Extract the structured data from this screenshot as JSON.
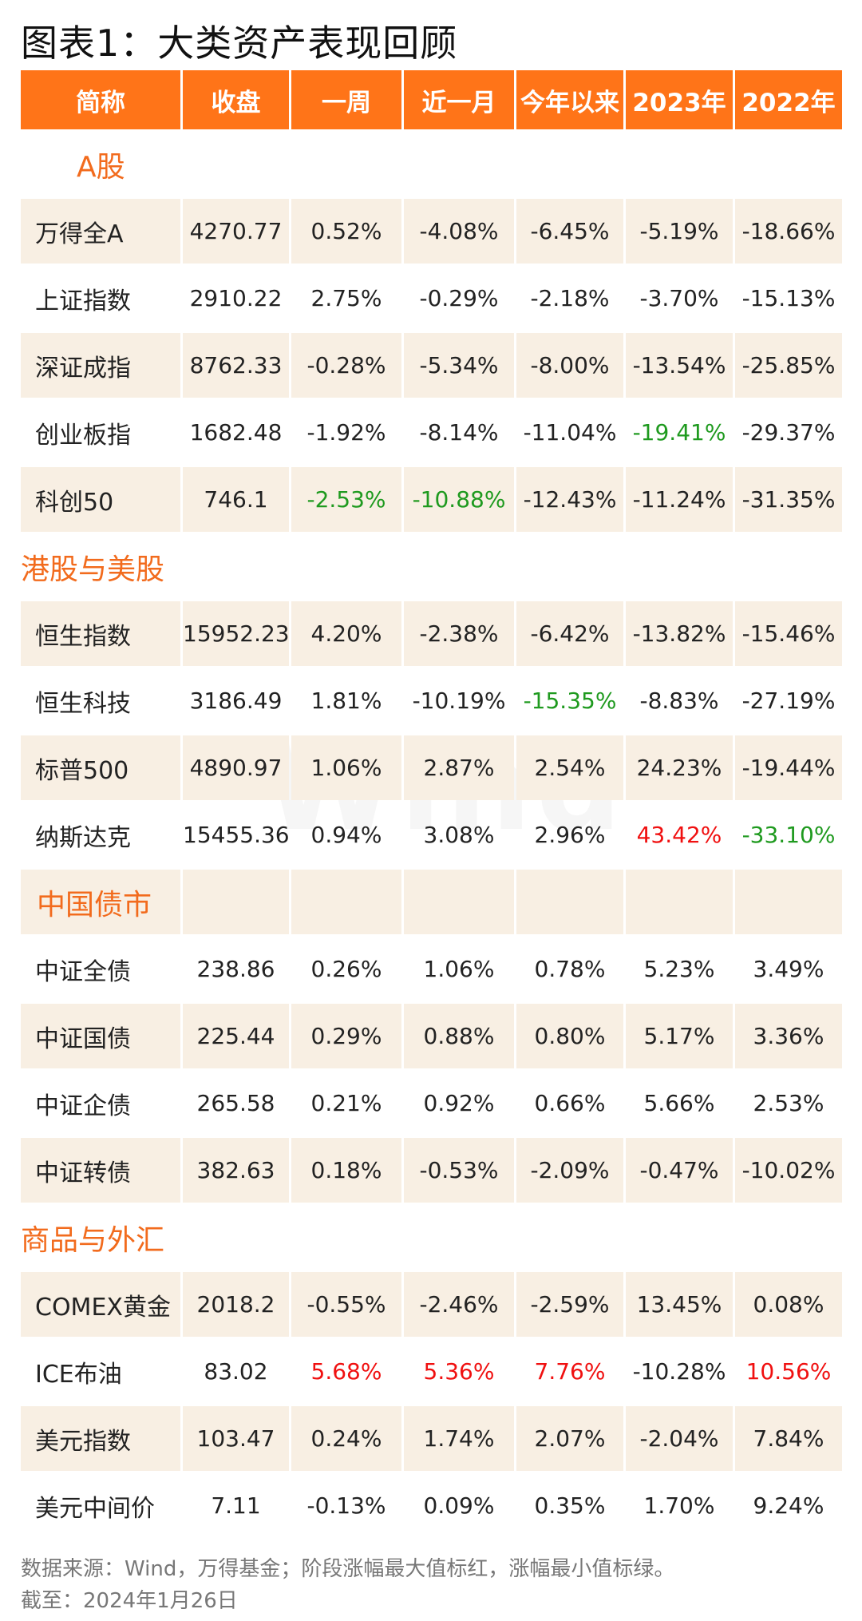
{
  "header": {
    "title": "图表1：大类资产表现回顾"
  },
  "table": {
    "columns": [
      "简称",
      "收盘",
      "一周",
      "近一月",
      "今年以来",
      "2023年",
      "2022年"
    ],
    "sections": [
      {
        "title": "A股",
        "rows": [
          {
            "name": "万得全A",
            "values": [
              "4270.77",
              "0.52%",
              "-4.08%",
              "-6.45%",
              "-5.19%",
              "-18.66%"
            ]
          },
          {
            "name": "上证指数",
            "values": [
              "2910.22",
              "2.75%",
              "-0.29%",
              "-2.18%",
              "-3.70%",
              "-15.13%"
            ]
          },
          {
            "name": "深证成指",
            "values": [
              "8762.33",
              "-0.28%",
              "-5.34%",
              "-8.00%",
              "-13.54%",
              "-25.85%"
            ]
          },
          {
            "name": "创业板指",
            "values": [
              "1682.48",
              "-1.92%",
              "-8.14%",
              "-11.04%",
              "-19.41%",
              "-29.37%"
            ],
            "highlights": [
              {
                "col": 4,
                "color": "#1f9a1f"
              }
            ]
          },
          {
            "name": "科创50",
            "values": [
              "746.1",
              "-2.53%",
              "-10.88%",
              "-12.43%",
              "-11.24%",
              "-31.35%"
            ],
            "highlights": [
              {
                "col": 1,
                "color": "#1f9a1f"
              },
              {
                "col": 2,
                "color": "#1f9a1f"
              }
            ]
          }
        ]
      },
      {
        "title": "港股与美股",
        "rows": [
          {
            "name": "恒生指数",
            "values": [
              "15952.23",
              "4.20%",
              "-2.38%",
              "-6.42%",
              "-13.82%",
              "-15.46%"
            ]
          },
          {
            "name": "恒生科技",
            "values": [
              "3186.49",
              "1.81%",
              "-10.19%",
              "-15.35%",
              "-8.83%",
              "-27.19%"
            ],
            "highlights": [
              {
                "col": 3,
                "color": "#1f9a1f"
              }
            ]
          },
          {
            "name": "标普500",
            "values": [
              "4890.97",
              "1.06%",
              "2.87%",
              "2.54%",
              "24.23%",
              "-19.44%"
            ]
          },
          {
            "name": "纳斯达克",
            "values": [
              "15455.36",
              "0.94%",
              "3.08%",
              "2.96%",
              "43.42%",
              "-33.10%"
            ],
            "highlights": [
              {
                "col": 4,
                "color": "#f01010"
              },
              {
                "col": 5,
                "color": "#1f9a1f"
              }
            ]
          }
        ]
      },
      {
        "title": "中国债市",
        "rows": [
          {
            "name": "中证全债",
            "values": [
              "238.86",
              "0.26%",
              "1.06%",
              "0.78%",
              "5.23%",
              "3.49%"
            ]
          },
          {
            "name": "中证国债",
            "values": [
              "225.44",
              "0.29%",
              "0.88%",
              "0.80%",
              "5.17%",
              "3.36%"
            ]
          },
          {
            "name": "中证企债",
            "values": [
              "265.58",
              "0.21%",
              "0.92%",
              "0.66%",
              "5.66%",
              "2.53%"
            ]
          },
          {
            "name": "中证转债",
            "values": [
              "382.63",
              "0.18%",
              "-0.53%",
              "-2.09%",
              "-0.47%",
              "-10.02%"
            ]
          }
        ]
      },
      {
        "title": "商品与外汇",
        "rows": [
          {
            "name": "COMEX黄金",
            "values": [
              "2018.2",
              "-0.55%",
              "-2.46%",
              "-2.59%",
              "13.45%",
              "0.08%"
            ]
          },
          {
            "name": "ICE布油",
            "values": [
              "83.02",
              "5.68%",
              "5.36%",
              "7.76%",
              "-10.28%",
              "10.56%"
            ],
            "highlights": [
              {
                "col": 1,
                "color": "#f01010"
              },
              {
                "col": 2,
                "color": "#f01010"
              },
              {
                "col": 3,
                "color": "#f01010"
              },
              {
                "col": 5,
                "color": "#f01010"
              }
            ]
          },
          {
            "name": "美元指数",
            "values": [
              "103.47",
              "0.24%",
              "1.74%",
              "2.07%",
              "-2.04%",
              "7.84%"
            ]
          },
          {
            "name": "美元中间价",
            "values": [
              "7.11",
              "-0.13%",
              "0.09%",
              "0.35%",
              "1.70%",
              "9.24%"
            ]
          }
        ]
      }
    ]
  },
  "watermark": "Wind",
  "footer": {
    "source": "数据来源：Wind，万得基金；阶段涨幅最大值标红，涨幅最小值标绿。",
    "date": "截至：2024年1月26日"
  }
}
